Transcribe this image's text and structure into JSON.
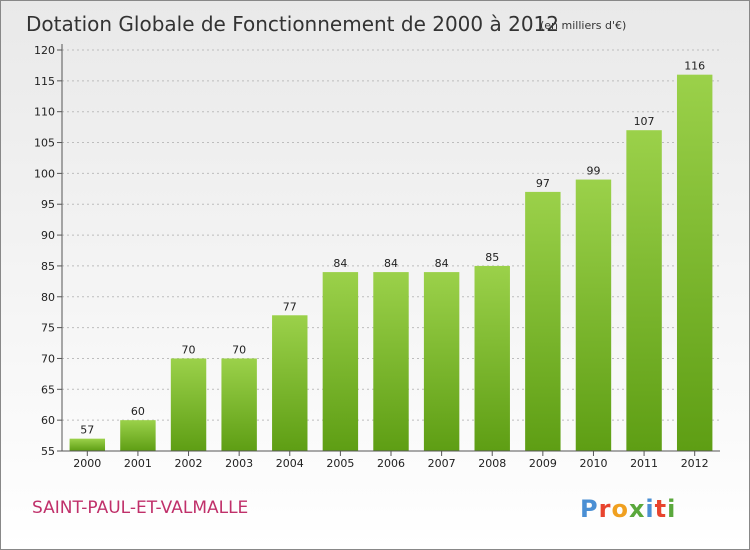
{
  "title": "Dotation Globale de Fonctionnement de 2000 à 2012",
  "subtitle": "(en milliers d'€)",
  "commune": "SAINT-PAUL-ET-VALMALLE",
  "logo": {
    "letters": [
      "P",
      "r",
      "o",
      "x",
      "i",
      "t",
      "i"
    ],
    "colors": [
      "#4a8fd4",
      "#e8442e",
      "#f0a020",
      "#5aa83c",
      "#4a8fd4",
      "#e8442e",
      "#5aa83c"
    ]
  },
  "colors": {
    "bar_top": "#9bd14a",
    "bar_bottom": "#5e9e14",
    "grid": "#bdbdbd",
    "axis": "#555555"
  },
  "chart_data": {
    "type": "bar",
    "categories": [
      "2000",
      "2001",
      "2002",
      "2003",
      "2004",
      "2005",
      "2006",
      "2007",
      "2008",
      "2009",
      "2010",
      "2011",
      "2012"
    ],
    "values": [
      57,
      60,
      70,
      70,
      77,
      84,
      84,
      84,
      85,
      97,
      99,
      107,
      116
    ],
    "ylim": [
      55,
      120
    ],
    "yticks": [
      55,
      60,
      65,
      70,
      75,
      80,
      85,
      90,
      95,
      100,
      105,
      110,
      115,
      120
    ],
    "grid": true
  }
}
